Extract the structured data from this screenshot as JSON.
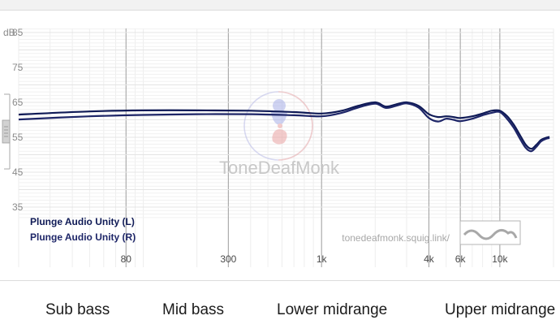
{
  "chart_data": {
    "type": "line",
    "x_scale": "log",
    "xlim": [
      20,
      20000
    ],
    "ylim": [
      31,
      86
    ],
    "y_ticks": [
      35,
      45,
      55,
      65,
      75,
      85
    ],
    "y_unit": "dB",
    "x_tick_labels": [
      {
        "value": 80,
        "label": "80"
      },
      {
        "value": 300,
        "label": "300"
      },
      {
        "value": 1000,
        "label": "1k"
      },
      {
        "value": 4000,
        "label": "4k"
      },
      {
        "value": 6000,
        "label": "6k"
      },
      {
        "value": 10000,
        "label": "10k"
      }
    ],
    "grid": true,
    "legend_position": "bottom-left",
    "series": [
      {
        "name": "Plunge Audio Unity (L)",
        "color": "#0f1a56",
        "x": [
          20,
          50,
          100,
          200,
          400,
          700,
          1000,
          1300,
          1600,
          2000,
          2300,
          2700,
          3000,
          3500,
          4000,
          4500,
          5000,
          5500,
          6000,
          7000,
          8000,
          9000,
          10000,
          11000,
          12000,
          13000,
          14000,
          15000,
          16000,
          17000,
          18000,
          19000
        ],
        "values": [
          61.5,
          62.4,
          62.7,
          62.7,
          62.6,
          62.2,
          61.8,
          62.6,
          64.0,
          65.0,
          63.8,
          64.6,
          65.0,
          64.0,
          61.6,
          60.8,
          61.0,
          60.8,
          60.5,
          61.0,
          61.8,
          62.6,
          62.6,
          61.0,
          58.5,
          55.5,
          52.8,
          51.7,
          52.8,
          54.2,
          54.8,
          55.1
        ]
      },
      {
        "name": "Plunge Audio Unity (R)",
        "color": "#1e2668",
        "x": [
          20,
          50,
          100,
          200,
          400,
          700,
          1000,
          1300,
          1600,
          2000,
          2300,
          2700,
          3000,
          3500,
          4000,
          4500,
          5000,
          5500,
          6000,
          7000,
          8000,
          9000,
          10000,
          11000,
          12000,
          13000,
          14000,
          15000,
          16000,
          17000,
          18000,
          19000
        ],
        "values": [
          60.1,
          61.0,
          61.4,
          61.6,
          61.6,
          61.3,
          61.0,
          62.0,
          63.5,
          64.6,
          63.4,
          64.2,
          64.7,
          63.5,
          60.5,
          59.5,
          60.3,
          60.0,
          59.6,
          60.3,
          61.3,
          62.0,
          62.2,
          60.2,
          57.6,
          54.5,
          51.9,
          51.0,
          52.2,
          53.8,
          54.5,
          54.8
        ]
      }
    ]
  },
  "watermark": {
    "brand": "ToneDeafMonk",
    "url": "tonedeafmonk.squig.link/"
  },
  "band_labels": [
    "Sub bass",
    "Mid bass",
    "Lower midrange",
    "Upper midrange"
  ]
}
